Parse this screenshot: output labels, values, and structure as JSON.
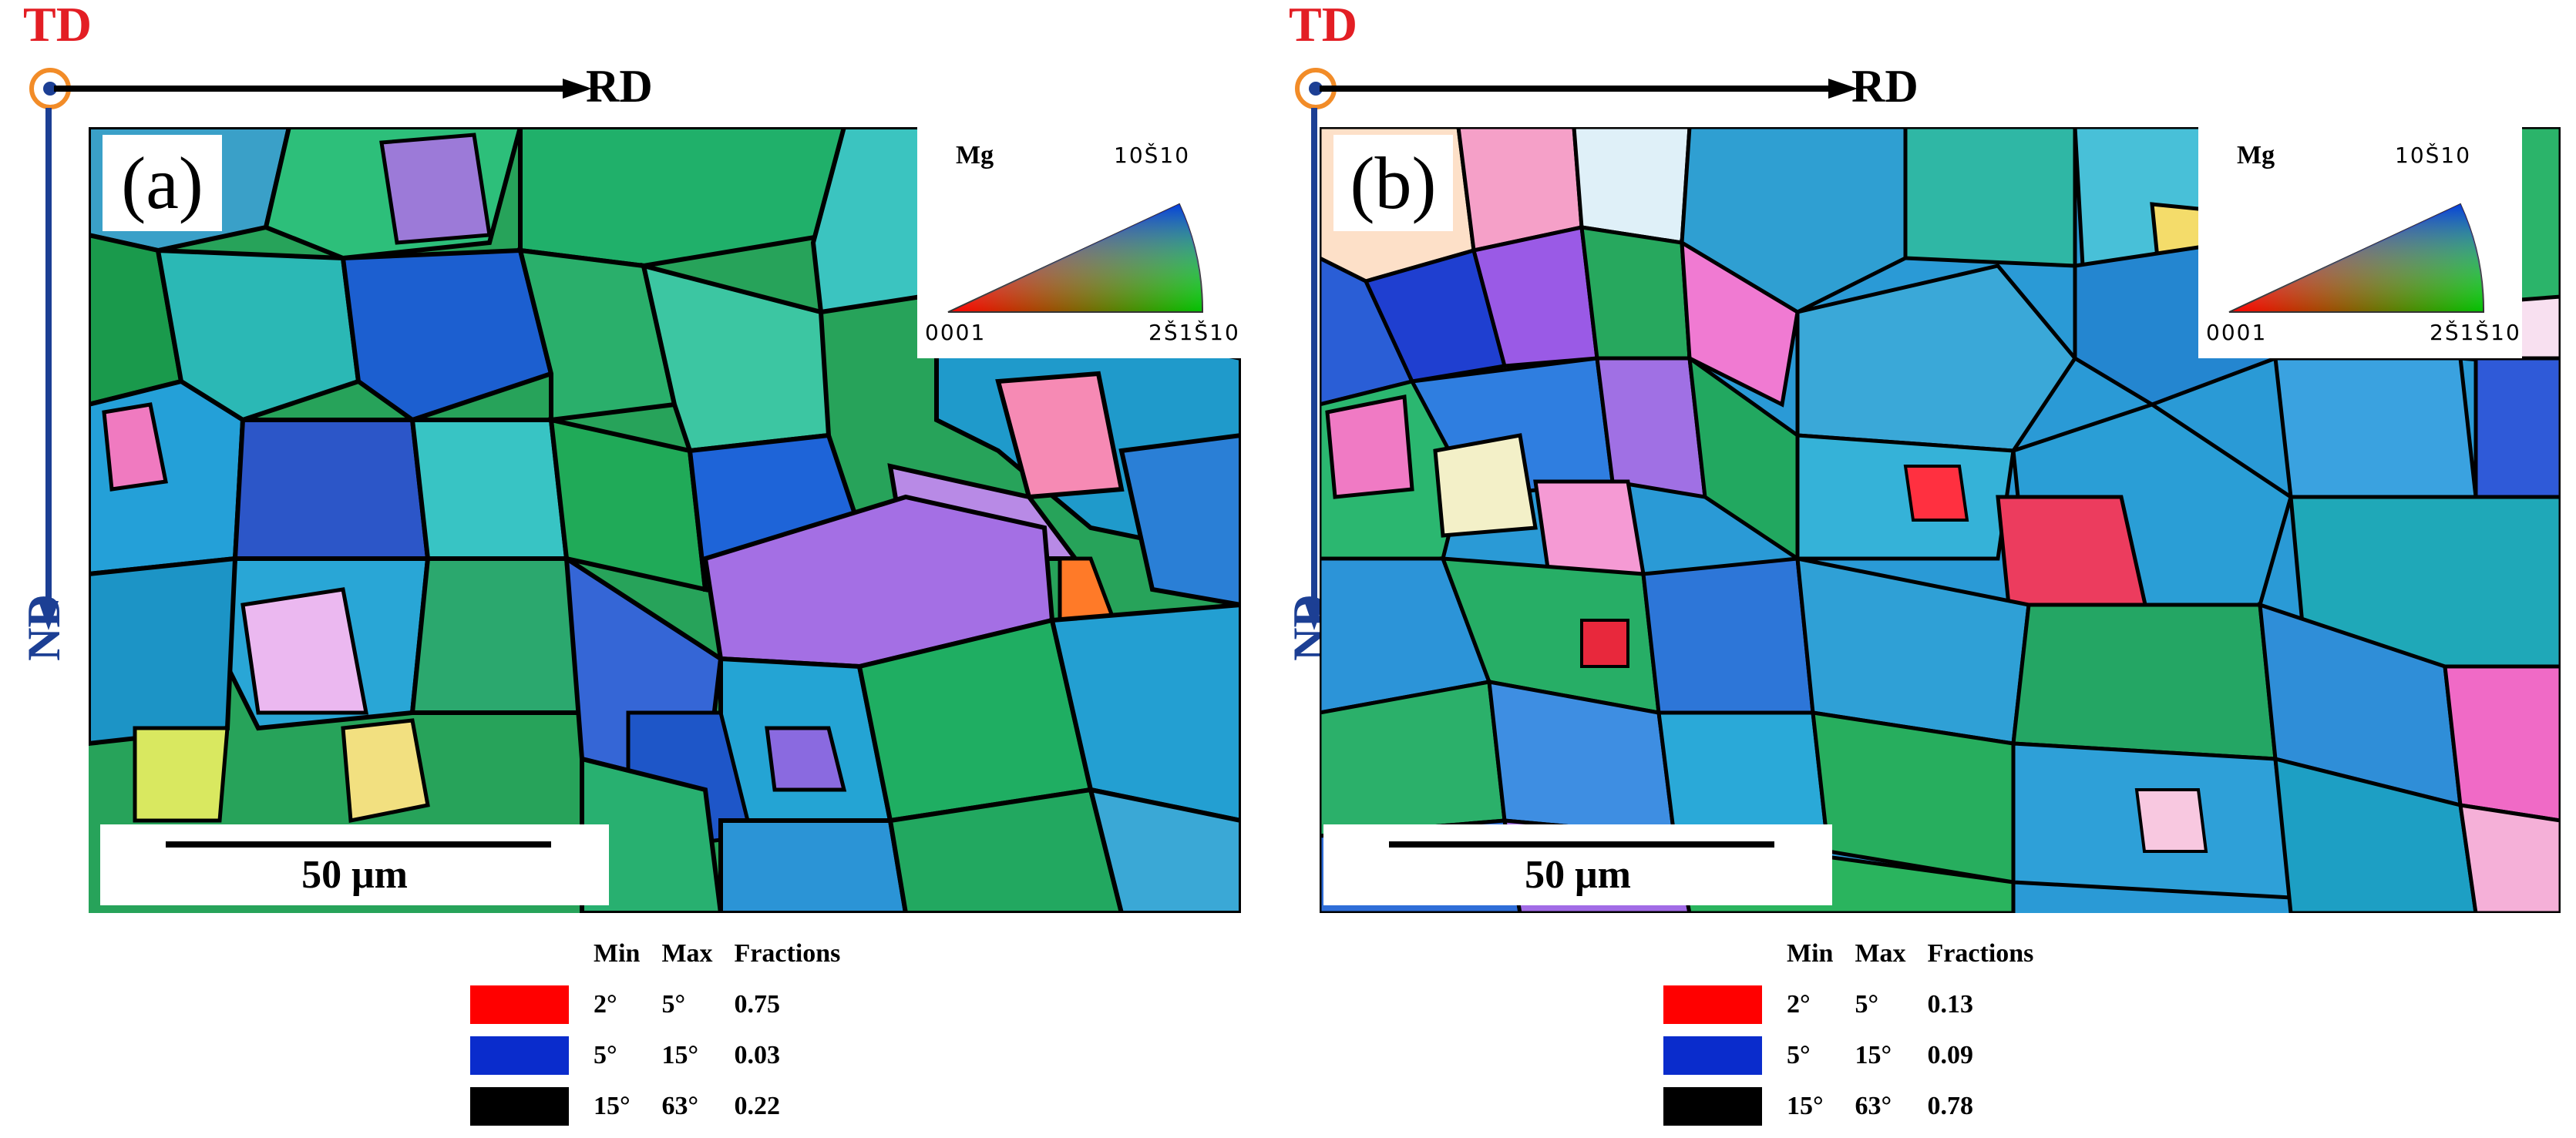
{
  "axes": {
    "td": "TD",
    "rd": "RD",
    "nd": "ND"
  },
  "ipf_key": {
    "material": "Mg",
    "corner_basal": "0001",
    "corner_prism_1010": "10Š10",
    "corner_prism_2110": "2Š1Š10"
  },
  "colors": {
    "low_angle": "#ff0000",
    "medium_angle": "#0a2ccc",
    "high_angle": "#000000",
    "td_label": "#e31e24",
    "nd_label": "#1c3f94"
  },
  "panels": [
    {
      "letter": "(a)",
      "scale_bar": "50 μm",
      "table": {
        "headers": [
          "",
          "Min",
          "Max",
          "Fractions"
        ],
        "rows": [
          {
            "min": "2°",
            "max": "5°",
            "fraction": "0.75"
          },
          {
            "min": "5°",
            "max": "15°",
            "fraction": "0.03"
          },
          {
            "min": "15°",
            "max": "63°",
            "fraction": "0.22"
          }
        ]
      }
    },
    {
      "letter": "(b)",
      "scale_bar": "50 μm",
      "table": {
        "headers": [
          "",
          "Min",
          "Max",
          "Fractions"
        ],
        "rows": [
          {
            "min": "2°",
            "max": "5°",
            "fraction": "0.13"
          },
          {
            "min": "5°",
            "max": "15°",
            "fraction": "0.09"
          },
          {
            "min": "15°",
            "max": "63°",
            "fraction": "0.78"
          }
        ]
      }
    }
  ]
}
